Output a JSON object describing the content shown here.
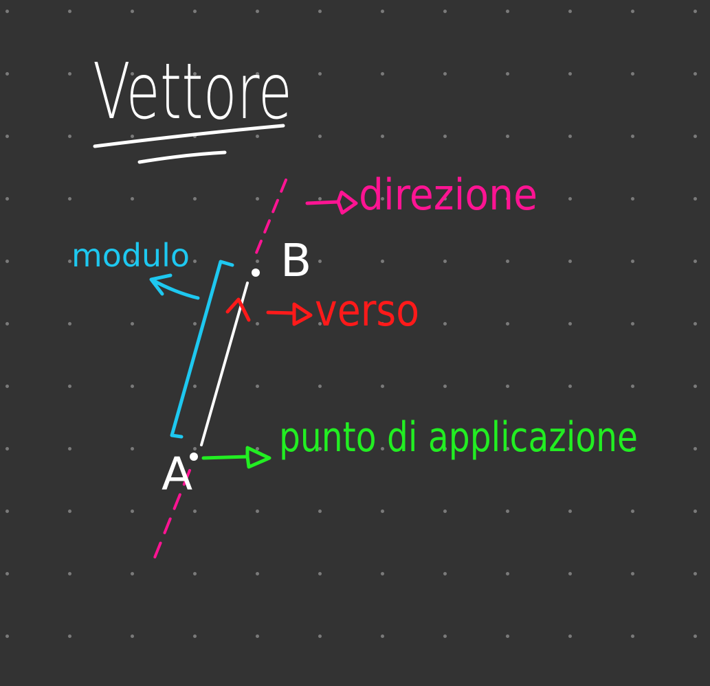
{
  "board": {
    "background": "#333333",
    "dot_color": "#7a7a7a"
  },
  "title": {
    "text": "Vettore",
    "color": "#ffffff"
  },
  "points": {
    "a_label": "A",
    "b_label": "B",
    "color": "#ffffff"
  },
  "labels": {
    "direzione": {
      "text": "direzione",
      "color": "#ff1493"
    },
    "modulo": {
      "text": "modulo",
      "color": "#1ec8f0"
    },
    "verso": {
      "text": "verso",
      "color": "#ff1a1a"
    },
    "punto": {
      "text": "punto di applicazione",
      "color": "#22ee22"
    }
  }
}
